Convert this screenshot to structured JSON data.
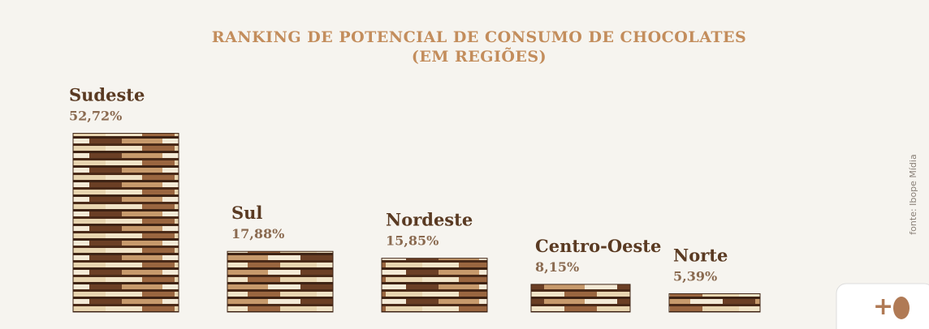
{
  "chart_data": {
    "type": "bar",
    "title": "RANKING DE POTENCIAL DE CONSUMO DE CHOCOLATES",
    "subtitle": "(EM REGIÕES)",
    "categories": [
      "Sudeste",
      "Sul",
      "Nordeste",
      "Centro-Oeste",
      "Norte"
    ],
    "values": [
      52.72,
      17.88,
      15.85,
      8.15,
      5.39
    ],
    "value_labels": [
      "52,72%",
      "17,88%",
      "15,85%",
      "8,15%",
      "5,39%"
    ],
    "ylim": [
      0,
      55
    ],
    "source": "fonte: Ibope Mídia"
  }
}
